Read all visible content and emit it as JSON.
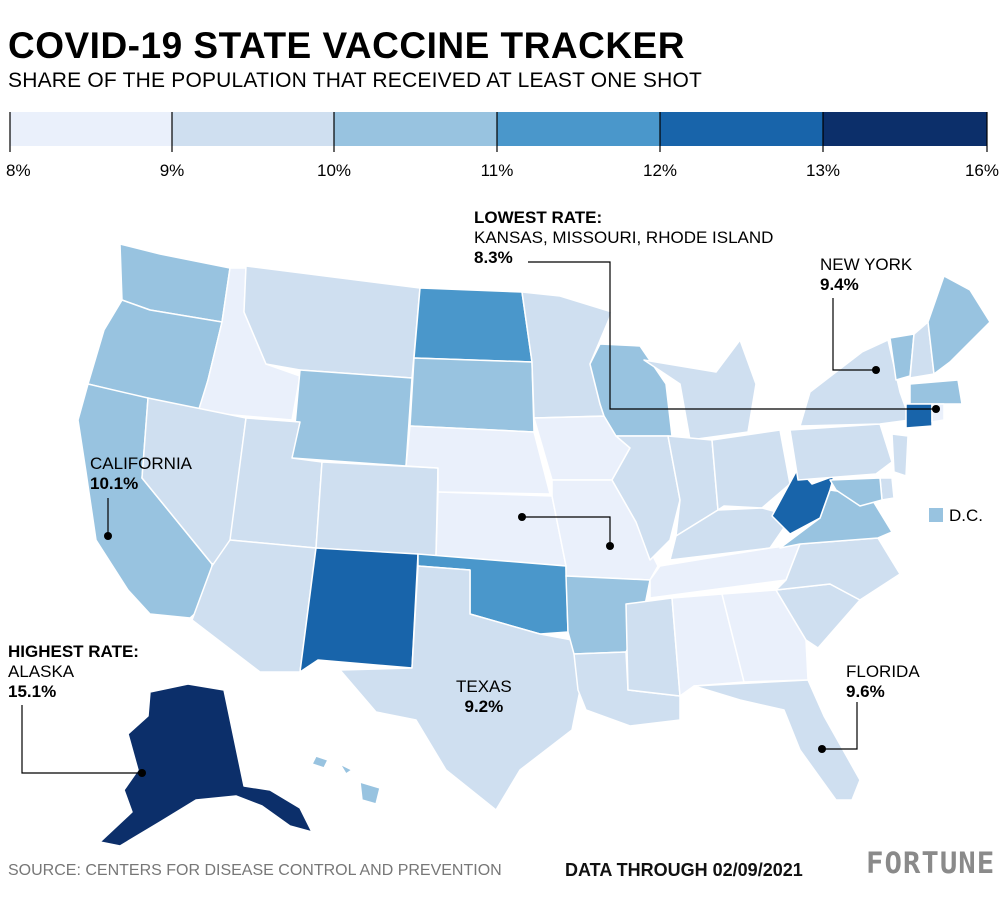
{
  "title": "COVID-19 STATE VACCINE TRACKER",
  "subtitle": "SHARE OF THE POPULATION THAT RECEIVED AT LEAST ONE SHOT",
  "legend": {
    "bins": [
      {
        "from": 8,
        "to": 9,
        "color": "#eaf0fb"
      },
      {
        "from": 9,
        "to": 10,
        "color": "#cfdff0"
      },
      {
        "from": 10,
        "to": 11,
        "color": "#98c3e0"
      },
      {
        "from": 11,
        "to": 12,
        "color": "#4a97cb"
      },
      {
        "from": 12,
        "to": 13,
        "color": "#1864aa"
      },
      {
        "from": 13,
        "to": 16,
        "color": "#0c2f6a"
      }
    ],
    "tick_labels": [
      "8%",
      "9%",
      "10%",
      "11%",
      "12%",
      "13%",
      "16%"
    ]
  },
  "annotations": {
    "lowest": {
      "heading": "LOWEST RATE:",
      "states": "KANSAS, MISSOURI, RHODE ISLAND",
      "value": "8.3%"
    },
    "highest": {
      "heading": "HIGHEST RATE:",
      "state": "ALASKA",
      "value": "15.1%"
    },
    "new_york": {
      "state": "NEW YORK",
      "value": "9.4%"
    },
    "california": {
      "state": "CALIFORNIA",
      "value": "10.1%"
    },
    "texas": {
      "state": "TEXAS",
      "value": "9.2%"
    },
    "florida": {
      "state": "FLORIDA",
      "value": "9.6%"
    },
    "dc": {
      "label": "D.C.",
      "color": "#98c3e0"
    }
  },
  "footer": {
    "source": "SOURCE: CENTERS FOR DISEASE CONTROL AND PREVENTION",
    "data_through": "DATA THROUGH 02/09/2021",
    "brand": "FORTUNE"
  },
  "map": {
    "states": [
      {
        "name": "Washington",
        "color": "#98c3e0"
      },
      {
        "name": "Oregon",
        "color": "#98c3e0"
      },
      {
        "name": "California",
        "color": "#98c3e0"
      },
      {
        "name": "Idaho",
        "color": "#eaf0fb"
      },
      {
        "name": "Nevada",
        "color": "#cfdff0"
      },
      {
        "name": "Montana",
        "color": "#cfdff0"
      },
      {
        "name": "Wyoming",
        "color": "#98c3e0"
      },
      {
        "name": "Utah",
        "color": "#cfdff0"
      },
      {
        "name": "Arizona",
        "color": "#cfdff0"
      },
      {
        "name": "Colorado",
        "color": "#cfdff0"
      },
      {
        "name": "New Mexico",
        "color": "#1864aa"
      },
      {
        "name": "North Dakota",
        "color": "#4a97cb"
      },
      {
        "name": "South Dakota",
        "color": "#98c3e0"
      },
      {
        "name": "Nebraska",
        "color": "#eaf0fb"
      },
      {
        "name": "Kansas",
        "color": "#eaf0fb"
      },
      {
        "name": "Oklahoma",
        "color": "#4a97cb"
      },
      {
        "name": "Texas",
        "color": "#cfdff0"
      },
      {
        "name": "Minnesota",
        "color": "#cfdff0"
      },
      {
        "name": "Iowa",
        "color": "#eaf0fb"
      },
      {
        "name": "Missouri",
        "color": "#eaf0fb"
      },
      {
        "name": "Arkansas",
        "color": "#98c3e0"
      },
      {
        "name": "Louisiana",
        "color": "#cfdff0"
      },
      {
        "name": "Wisconsin",
        "color": "#98c3e0"
      },
      {
        "name": "Illinois",
        "color": "#cfdff0"
      },
      {
        "name": "Michigan",
        "color": "#cfdff0"
      },
      {
        "name": "Indiana",
        "color": "#cfdff0"
      },
      {
        "name": "Ohio",
        "color": "#cfdff0"
      },
      {
        "name": "Kentucky",
        "color": "#cfdff0"
      },
      {
        "name": "Tennessee",
        "color": "#eaf0fb"
      },
      {
        "name": "Mississippi",
        "color": "#cfdff0"
      },
      {
        "name": "Alabama",
        "color": "#eaf0fb"
      },
      {
        "name": "Georgia",
        "color": "#eaf0fb"
      },
      {
        "name": "Florida",
        "color": "#cfdff0"
      },
      {
        "name": "South Carolina",
        "color": "#cfdff0"
      },
      {
        "name": "North Carolina",
        "color": "#cfdff0"
      },
      {
        "name": "Virginia",
        "color": "#98c3e0"
      },
      {
        "name": "West Virginia",
        "color": "#1864aa"
      },
      {
        "name": "Pennsylvania",
        "color": "#cfdff0"
      },
      {
        "name": "New York",
        "color": "#cfdff0"
      },
      {
        "name": "Vermont",
        "color": "#98c3e0"
      },
      {
        "name": "New Hampshire",
        "color": "#cfdff0"
      },
      {
        "name": "Maine",
        "color": "#98c3e0"
      },
      {
        "name": "Massachusetts",
        "color": "#98c3e0"
      },
      {
        "name": "Connecticut",
        "color": "#1864aa"
      },
      {
        "name": "Rhode Island",
        "color": "#eaf0fb"
      },
      {
        "name": "New Jersey",
        "color": "#cfdff0"
      },
      {
        "name": "Delaware",
        "color": "#cfdff0"
      },
      {
        "name": "Maryland",
        "color": "#98c3e0"
      },
      {
        "name": "Alaska",
        "color": "#0c2f6a"
      },
      {
        "name": "Hawaii",
        "color": "#98c3e0"
      }
    ]
  }
}
